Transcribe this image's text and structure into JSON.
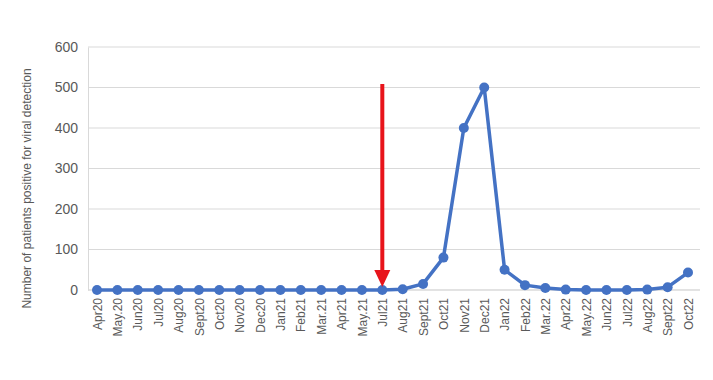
{
  "chart_data": {
    "type": "line",
    "y_label": "Number of patients positive for viral detection",
    "categories": [
      "Apr20",
      "May.20",
      "Jun20",
      "Jul20",
      "Aug20",
      "Sept20",
      "Oct20",
      "Nov20",
      "Dec20",
      "Jan21",
      "Feb21",
      "Mar.21",
      "Apr21",
      "May.21",
      "Jul21",
      "Aug21",
      "Sept21",
      "Oct21",
      "Nov21",
      "Dec21",
      "Jan22",
      "Feb22",
      "Mar.22",
      "Apr22",
      "May.22",
      "Jun22",
      "Jul22",
      "Aug22",
      "Sept22",
      "Oct22"
    ],
    "values": [
      0,
      0,
      0,
      0,
      0,
      0,
      0,
      0,
      0,
      0,
      0,
      0,
      0,
      0,
      0,
      2,
      15,
      80,
      400,
      500,
      50,
      12,
      5,
      1,
      0,
      0,
      0,
      1,
      7,
      43
    ],
    "color": "#4472c4",
    "marker": "circle",
    "ylim": [
      0,
      600
    ],
    "yticks": [
      0,
      100,
      200,
      300,
      400,
      500,
      600
    ],
    "grid": true
  }
}
